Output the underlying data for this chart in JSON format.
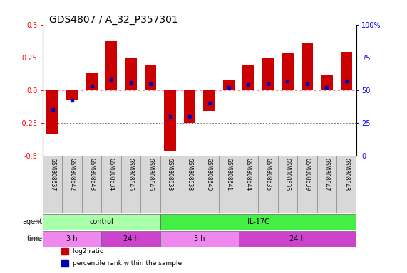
{
  "title": "GDS4807 / A_32_P357301",
  "samples": [
    "GSM808637",
    "GSM808642",
    "GSM808643",
    "GSM808634",
    "GSM808645",
    "GSM808646",
    "GSM808633",
    "GSM808638",
    "GSM808640",
    "GSM808641",
    "GSM808644",
    "GSM808635",
    "GSM808636",
    "GSM808639",
    "GSM808647",
    "GSM808648"
  ],
  "log2_ratio": [
    -0.34,
    -0.07,
    0.13,
    0.38,
    0.25,
    0.19,
    -0.47,
    -0.25,
    -0.16,
    0.08,
    0.19,
    0.24,
    0.28,
    0.36,
    0.12,
    0.29
  ],
  "percentile_rank": [
    35,
    42,
    53,
    58,
    56,
    55,
    30,
    30,
    40,
    52,
    54,
    55,
    57,
    55,
    52,
    57
  ],
  "ylim_left": [
    -0.5,
    0.5
  ],
  "ylim_right": [
    0,
    100
  ],
  "yticks_left": [
    -0.5,
    -0.25,
    0.0,
    0.25,
    0.5
  ],
  "yticks_right": [
    0,
    25,
    50,
    75,
    100
  ],
  "bar_color": "#cc0000",
  "dot_color": "#0000bb",
  "zero_line_color": "#ff8888",
  "dotted_line_color": "#444444",
  "bg_color": "#ffffff",
  "sample_bg": "#d0d0d0",
  "agent_colors": [
    "#aaffaa",
    "#44ee44"
  ],
  "agent_labels": [
    "control",
    "IL-17C"
  ],
  "agent_starts": [
    0,
    6
  ],
  "agent_ends": [
    6,
    16
  ],
  "time_colors_light": "#ee88ee",
  "time_colors_dark": "#cc44cc",
  "time_groups": [
    {
      "label": "3 h",
      "start": 0,
      "end": 3,
      "dark": false
    },
    {
      "label": "24 h",
      "start": 3,
      "end": 6,
      "dark": true
    },
    {
      "label": "3 h",
      "start": 6,
      "end": 10,
      "dark": false
    },
    {
      "label": "24 h",
      "start": 10,
      "end": 16,
      "dark": true
    }
  ],
  "legend_items": [
    {
      "label": "log2 ratio",
      "color": "#cc0000"
    },
    {
      "label": "percentile rank within the sample",
      "color": "#0000bb"
    }
  ],
  "title_fontsize": 10,
  "tick_fontsize": 7,
  "annot_fontsize": 7,
  "sample_fontsize": 5.5,
  "row_fontsize": 7
}
